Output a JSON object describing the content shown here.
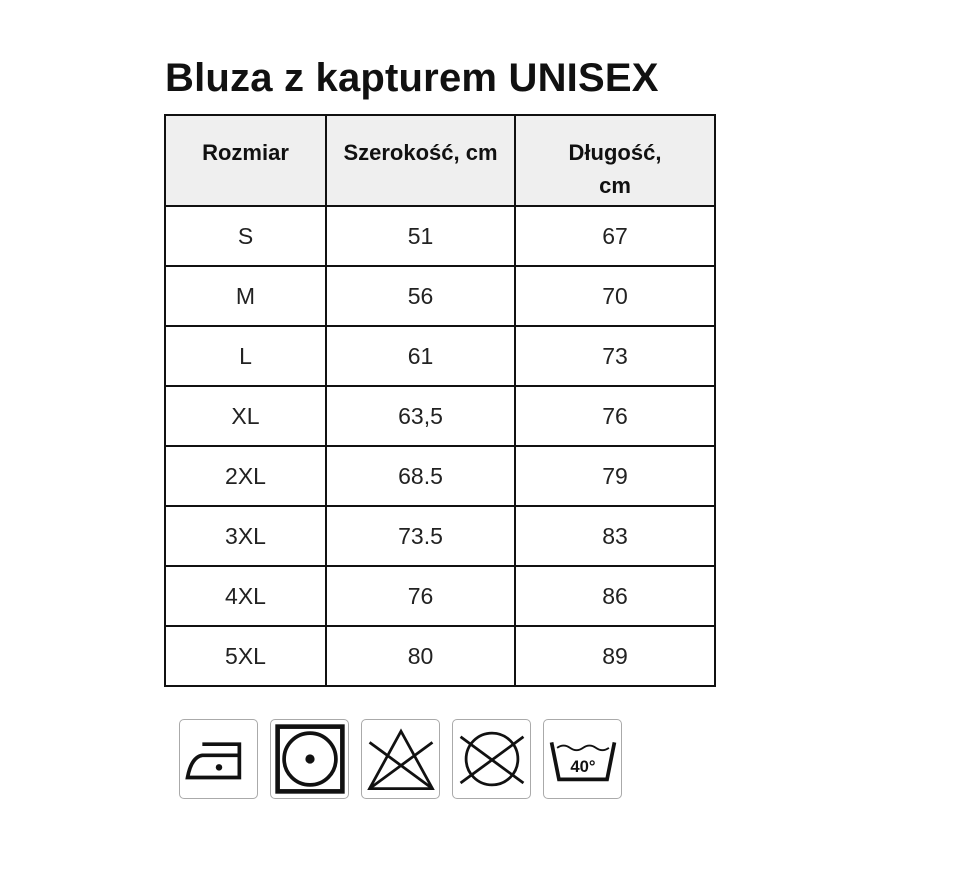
{
  "title": "Bluza z kapturem UNISEX",
  "table": {
    "headers": [
      "Rozmiar",
      "Szerokość, cm",
      "Długość, cm"
    ],
    "rows": [
      [
        "S",
        "51",
        "67"
      ],
      [
        "M",
        "56",
        "70"
      ],
      [
        "L",
        "61",
        "73"
      ],
      [
        "XL",
        "63,5",
        "76"
      ],
      [
        "2XL",
        "68.5",
        "79"
      ],
      [
        "3XL",
        "73.5",
        "83"
      ],
      [
        "4XL",
        "76",
        "86"
      ],
      [
        "5XL",
        "80",
        "89"
      ]
    ]
  },
  "care_icons": [
    {
      "icon": "iron-low-temp-icon"
    },
    {
      "icon": "tumble-dry-icon"
    },
    {
      "icon": "do-not-bleach-icon"
    },
    {
      "icon": "do-not-dry-clean-icon"
    },
    {
      "icon": "wash-40-icon",
      "label": "40°"
    }
  ]
}
